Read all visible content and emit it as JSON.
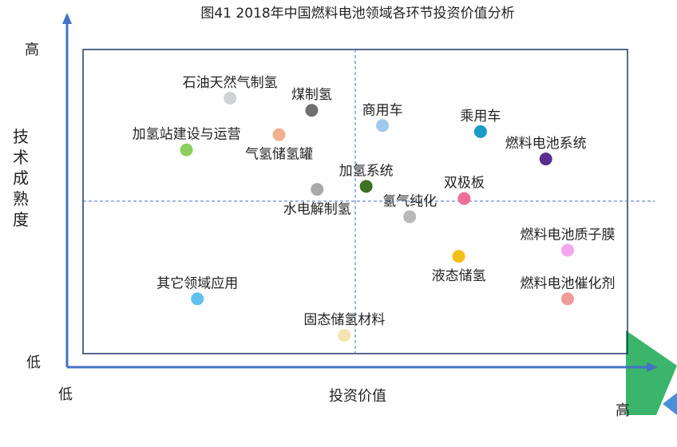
{
  "chart_data": {
    "type": "scatter",
    "title": "图41  2018年中国燃料电池领域各环节投资价值分析",
    "xlabel": "投资价值",
    "ylabel": "技术成熟度",
    "x_low_label": "低",
    "x_high_label": "高",
    "y_low_label": "低",
    "y_high_label": "高",
    "xlim": [
      0,
      100
    ],
    "ylim": [
      0,
      100
    ],
    "x_divider": 50,
    "y_divider": 50,
    "grid": false,
    "points": [
      {
        "label": "石油天然气制氢",
        "x": 27,
        "y": 84,
        "color": "#cfd3d6",
        "label_side": "above"
      },
      {
        "label": "煤制氢",
        "x": 42,
        "y": 80,
        "color": "#6f6f6f",
        "label_side": "above"
      },
      {
        "label": "商用车",
        "x": 55,
        "y": 75,
        "color": "#9ec8ee",
        "label_side": "above"
      },
      {
        "label": "乘用车",
        "x": 73,
        "y": 73,
        "color": "#1a9ac6",
        "label_side": "above"
      },
      {
        "label": "加氢站建设与运营",
        "x": 19,
        "y": 67,
        "color": "#8ccf5a",
        "label_side": "above"
      },
      {
        "label": "气氢储氢罐",
        "x": 36,
        "y": 72,
        "color": "#f0b08c",
        "label_side": "below"
      },
      {
        "label": "燃料电池系统",
        "x": 85,
        "y": 64,
        "color": "#5b2d8e",
        "label_side": "above"
      },
      {
        "label": "加氢系统",
        "x": 52,
        "y": 55,
        "color": "#3e7026",
        "label_side": "above"
      },
      {
        "label": "水电解制氢",
        "x": 43,
        "y": 54,
        "color": "#a9a9a9",
        "label_side": "below"
      },
      {
        "label": "双极板",
        "x": 70,
        "y": 51,
        "color": "#ee6f96",
        "label_side": "above"
      },
      {
        "label": "氢气纯化",
        "x": 60,
        "y": 45,
        "color": "#b9b9b9",
        "label_side": "above"
      },
      {
        "label": "燃料电池质子膜",
        "x": 89,
        "y": 34,
        "color": "#f5a6ef",
        "label_side": "above"
      },
      {
        "label": "液态储氢",
        "x": 69,
        "y": 32,
        "color": "#f2c01b",
        "label_side": "below"
      },
      {
        "label": "其它领域应用",
        "x": 21,
        "y": 18,
        "color": "#5fc0f0",
        "label_side": "above"
      },
      {
        "label": "燃料电池催化剂",
        "x": 89,
        "y": 18,
        "color": "#f09a9a",
        "label_side": "above"
      },
      {
        "label": "固态储氢材料",
        "x": 48,
        "y": 6,
        "color": "#f6e4b0",
        "label_side": "above"
      }
    ]
  },
  "colors": {
    "axis": "#4472c4",
    "frame": "#1f3864",
    "divider": "#4472c4",
    "deco_green": "#3bb56b",
    "deco_blue": "#4a90d9"
  }
}
